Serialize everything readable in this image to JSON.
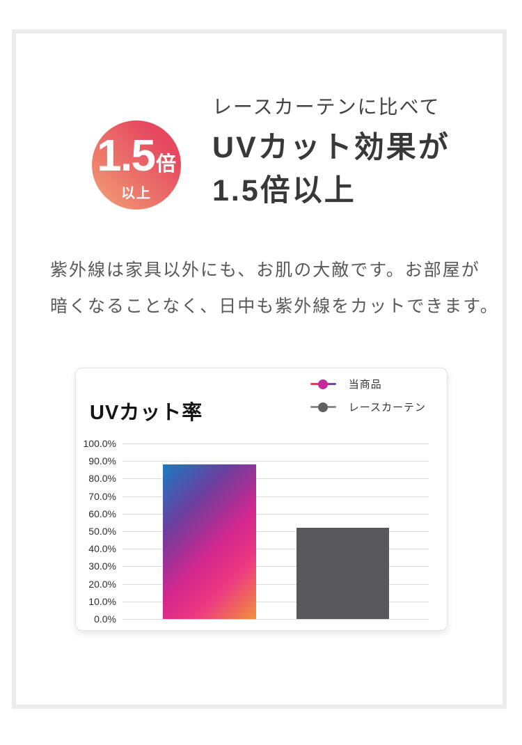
{
  "badge": {
    "value": "1.5",
    "unit": "倍",
    "qualifier": "以上"
  },
  "heading": {
    "kicker": "レースカーテンに比べて",
    "line1": "UVカット効果が",
    "line2": "1.5倍以上"
  },
  "body": {
    "lines": [
      "紫外線は家具以外にも、お肌の大敵です。お部屋が",
      "暗くなることなく、日中も紫外線をカットできます。"
    ]
  },
  "chart_data": {
    "type": "bar",
    "title": "UVカット率",
    "unit": "%",
    "ylim": [
      0,
      100
    ],
    "ytick_step": 10,
    "ytick_labels": [
      "100.0%",
      "90.0%",
      "80.0%",
      "70.0%",
      "60.0%",
      "50.0%",
      "40.0%",
      "30.0%",
      "20.0%",
      "10.0%",
      "0.0%"
    ],
    "grid": true,
    "legend_position": "top-right",
    "categories": [
      "当商品",
      "レースカーテン"
    ],
    "values": [
      88,
      52
    ],
    "series": [
      {
        "name": "当商品",
        "value": 88,
        "gradient": [
          "#1a7cc2 0%",
          "#6b3e9e 28%",
          "#d2278f 55%",
          "#ee3a80 75%",
          "#f0913a 100%"
        ]
      },
      {
        "name": "レースカーテン",
        "value": 52,
        "color": "#58585a"
      }
    ]
  },
  "colors": {
    "badge_gradient_start": "#f2a276",
    "badge_gradient_end": "#e5485f",
    "heading_text": "#3c3c3c",
    "body_text": "#595959",
    "panel_border": "#ececec",
    "card_border": "#e3e3e3",
    "gridline": "#dcdcdc",
    "tick_label": "#2e2e2e",
    "bar_gray": "#58585a",
    "legend_line_gradient": [
      "#e2463f",
      "#c62d96",
      "#4d4fae"
    ],
    "legend_dot_product": "#c32a9a",
    "legend_line_gray": "#8c8c8c",
    "legend_dot_gray": "#616161"
  }
}
